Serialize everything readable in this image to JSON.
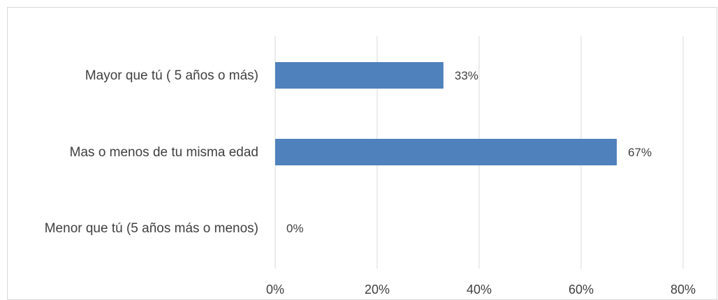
{
  "chart_data": {
    "type": "bar",
    "orientation": "horizontal",
    "categories": [
      "Mayor que tú ( 5 años o más)",
      "Mas o menos de tu misma edad",
      "Menor que tú (5 años más o menos)"
    ],
    "values": [
      33,
      67,
      0
    ],
    "data_labels": [
      "33%",
      "67%",
      "0%"
    ],
    "x_ticks": [
      "0%",
      "20%",
      "40%",
      "60%",
      "80%"
    ],
    "xlim": [
      0,
      80
    ],
    "grid": "vertical",
    "legend": "none",
    "title": "",
    "xlabel": "",
    "ylabel": "",
    "colors": {
      "bar": "#4f81bd",
      "grid": "#d9d9d9",
      "text": "#404040"
    }
  }
}
